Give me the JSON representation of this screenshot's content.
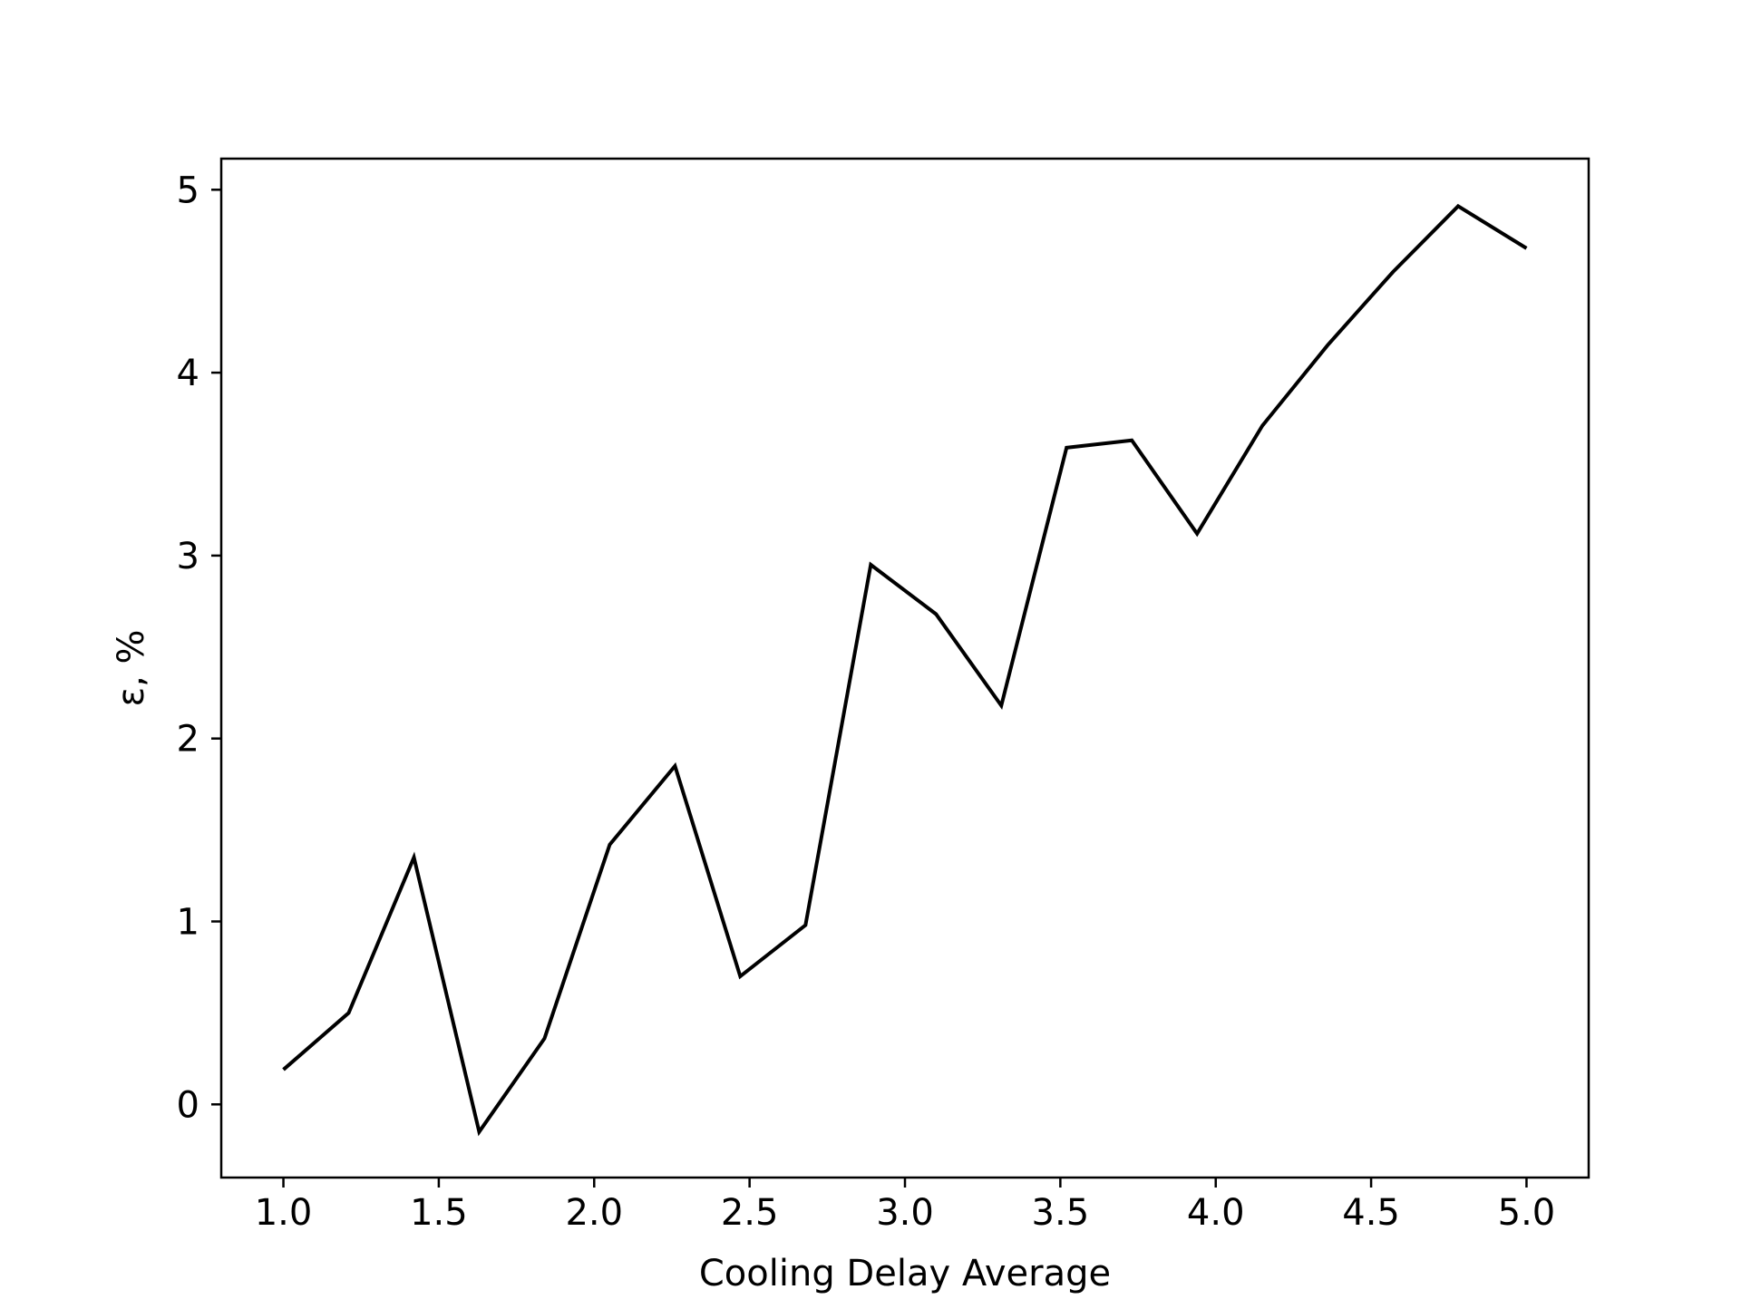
{
  "chart_data": {
    "type": "line",
    "title": "",
    "xlabel": "Cooling Delay Average",
    "ylabel": "ε, %",
    "xlim": [
      0.8,
      5.2
    ],
    "ylim": [
      -0.4,
      5.17
    ],
    "xticks": [
      1.0,
      1.5,
      2.0,
      2.5,
      3.0,
      3.5,
      4.0,
      4.5,
      5.0
    ],
    "xtick_labels": [
      "1.0",
      "1.5",
      "2.0",
      "2.5",
      "3.0",
      "3.5",
      "4.0",
      "4.5",
      "5.0"
    ],
    "yticks": [
      0,
      1,
      2,
      3,
      4,
      5
    ],
    "ytick_labels": [
      "0",
      "1",
      "2",
      "3",
      "4",
      "5"
    ],
    "grid": false,
    "line_color": "#000000",
    "series": [
      {
        "x": [
          1.0,
          1.21,
          1.42,
          1.63,
          1.84,
          2.05,
          2.26,
          2.47,
          2.68,
          2.89,
          3.1,
          3.31,
          3.52,
          3.73,
          3.94,
          4.15,
          4.36,
          4.57,
          4.78,
          5.0
        ],
        "values": [
          0.19,
          0.5,
          1.35,
          -0.15,
          0.36,
          1.42,
          1.85,
          0.7,
          0.98,
          2.95,
          2.68,
          2.18,
          3.59,
          3.63,
          3.12,
          3.71,
          4.15,
          4.55,
          4.91,
          4.68
        ]
      }
    ]
  }
}
